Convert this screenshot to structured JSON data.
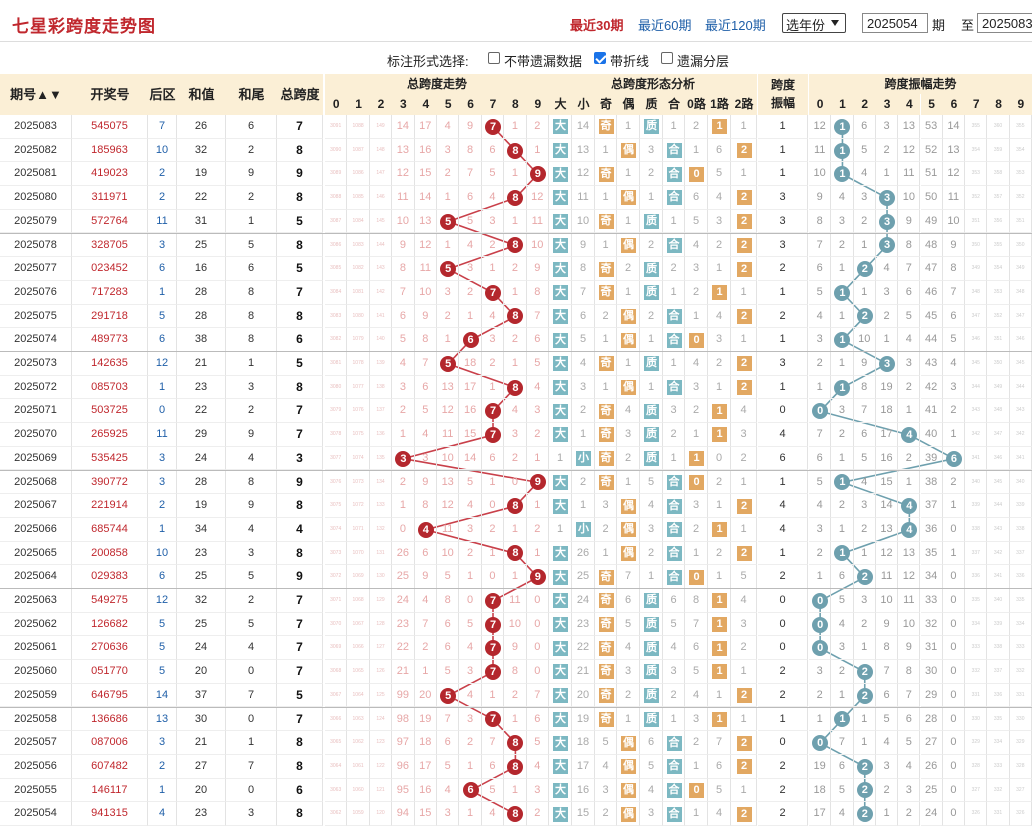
{
  "page": {
    "title": "七星彩跨度走势图"
  },
  "periods": {
    "items": [
      "最近30期",
      "最近60期",
      "最近120期"
    ],
    "selected": 0
  },
  "range": {
    "year_select": "选年份",
    "from": "2025054",
    "to": "2025083",
    "label_qi": "期",
    "label_zhi": "至"
  },
  "options": {
    "label": "标注形式选择:",
    "items": [
      {
        "label": "不带遗漏数据",
        "checked": false
      },
      {
        "label": "带折线",
        "checked": true
      },
      {
        "label": "遗漏分层",
        "checked": false
      }
    ]
  },
  "headers": {
    "period": "期号",
    "draw": "开奖号",
    "back": "后区",
    "sum": "和值",
    "tail": "和尾",
    "span": "总跨度",
    "trend": "总跨度走势",
    "shape": "总跨度形态分析",
    "amp": "跨度振幅",
    "amp_trend": "跨度振幅走势",
    "digits": [
      "0",
      "1",
      "2",
      "3",
      "4",
      "5",
      "6",
      "7",
      "8",
      "9"
    ],
    "shape_cols": [
      "大",
      "小",
      "奇",
      "偶",
      "质",
      "合",
      "0路",
      "1路",
      "2路"
    ]
  },
  "rows": [
    {
      "p": "2025083",
      "d": "545075",
      "b": 7,
      "s": 26,
      "t": 6,
      "k": 7,
      "m": [
        3091,
        1088,
        149,
        14,
        17,
        4,
        9,
        0,
        1,
        2
      ],
      "f": [
        "大",
        "14",
        "奇",
        "1",
        "质",
        "1",
        "2",
        "1",
        "1"
      ],
      "a": 1,
      "am": [
        12,
        0,
        6,
        3,
        13,
        53,
        14,
        355,
        360,
        355
      ]
    },
    {
      "p": "2025082",
      "d": "185963",
      "b": 10,
      "s": 32,
      "t": 2,
      "k": 8,
      "m": [
        3090,
        1087,
        148,
        13,
        16,
        3,
        8,
        6,
        0,
        1
      ],
      "f": [
        "大",
        "13",
        "1",
        "偶",
        "3",
        "合",
        "1",
        "6",
        "2"
      ],
      "a": 1,
      "am": [
        11,
        0,
        5,
        2,
        12,
        52,
        13,
        354,
        359,
        354
      ]
    },
    {
      "p": "2025081",
      "d": "419023",
      "b": 2,
      "s": 19,
      "t": 9,
      "k": 9,
      "m": [
        3089,
        1086,
        147,
        12,
        15,
        2,
        7,
        5,
        1,
        0
      ],
      "f": [
        "大",
        "12",
        "奇",
        "1",
        "2",
        "合",
        "0",
        "5",
        "1"
      ],
      "a": 1,
      "am": [
        10,
        0,
        4,
        1,
        11,
        51,
        12,
        353,
        358,
        353
      ]
    },
    {
      "p": "2025080",
      "d": "311971",
      "b": 2,
      "s": 22,
      "t": 2,
      "k": 8,
      "m": [
        3088,
        1085,
        146,
        11,
        14,
        1,
        6,
        4,
        0,
        12
      ],
      "f": [
        "大",
        "11",
        "1",
        "偶",
        "1",
        "合",
        "6",
        "4",
        "2"
      ],
      "a": 3,
      "am": [
        9,
        4,
        3,
        0,
        10,
        50,
        11,
        352,
        357,
        352
      ]
    },
    {
      "p": "2025079",
      "d": "572764",
      "b": 11,
      "s": 31,
      "t": 1,
      "k": 5,
      "m": [
        3087,
        1084,
        145,
        10,
        13,
        0,
        5,
        3,
        1,
        11
      ],
      "f": [
        "大",
        "10",
        "奇",
        "1",
        "质",
        "1",
        "5",
        "3",
        "2"
      ],
      "a": 3,
      "am": [
        8,
        3,
        2,
        0,
        9,
        49,
        10,
        351,
        356,
        351
      ]
    },
    {
      "p": "2025078",
      "d": "328705",
      "b": 3,
      "s": 25,
      "t": 5,
      "k": 8,
      "m": [
        3086,
        1083,
        144,
        9,
        12,
        1,
        4,
        2,
        0,
        10
      ],
      "f": [
        "大",
        "9",
        "1",
        "偶",
        "2",
        "合",
        "4",
        "2",
        "2"
      ],
      "a": 3,
      "am": [
        7,
        2,
        1,
        0,
        8,
        48,
        9,
        350,
        355,
        350
      ]
    },
    {
      "p": "2025077",
      "d": "023452",
      "b": 6,
      "s": 16,
      "t": 6,
      "k": 5,
      "m": [
        3085,
        1082,
        143,
        8,
        11,
        0,
        3,
        1,
        2,
        9
      ],
      "f": [
        "大",
        "8",
        "奇",
        "2",
        "质",
        "2",
        "3",
        "1",
        "2"
      ],
      "a": 2,
      "am": [
        6,
        1,
        0,
        4,
        7,
        47,
        8,
        349,
        354,
        349
      ]
    },
    {
      "p": "2025076",
      "d": "717283",
      "b": 1,
      "s": 28,
      "t": 8,
      "k": 7,
      "m": [
        3084,
        1081,
        142,
        7,
        10,
        3,
        2,
        0,
        1,
        8
      ],
      "f": [
        "大",
        "7",
        "奇",
        "1",
        "质",
        "1",
        "2",
        "1",
        "1"
      ],
      "a": 1,
      "am": [
        5,
        0,
        1,
        3,
        6,
        46,
        7,
        348,
        353,
        348
      ]
    },
    {
      "p": "2025075",
      "d": "291718",
      "b": 5,
      "s": 28,
      "t": 8,
      "k": 8,
      "m": [
        3083,
        1080,
        141,
        6,
        9,
        2,
        1,
        4,
        0,
        7
      ],
      "f": [
        "大",
        "6",
        "2",
        "偶",
        "2",
        "合",
        "1",
        "4",
        "2"
      ],
      "a": 2,
      "am": [
        4,
        1,
        0,
        2,
        5,
        45,
        6,
        347,
        352,
        347
      ]
    },
    {
      "p": "2025074",
      "d": "489773",
      "b": 6,
      "s": 38,
      "t": 8,
      "k": 6,
      "m": [
        3082,
        1079,
        140,
        5,
        8,
        1,
        0,
        3,
        2,
        6
      ],
      "f": [
        "大",
        "5",
        "1",
        "偶",
        "1",
        "合",
        "0",
        "3",
        "1"
      ],
      "a": 1,
      "am": [
        3,
        0,
        10,
        1,
        4,
        44,
        5,
        346,
        351,
        346
      ]
    },
    {
      "p": "2025073",
      "d": "142635",
      "b": 12,
      "s": 21,
      "t": 1,
      "k": 5,
      "m": [
        3081,
        1078,
        139,
        4,
        7,
        0,
        18,
        2,
        1,
        5
      ],
      "f": [
        "大",
        "4",
        "奇",
        "1",
        "质",
        "1",
        "4",
        "2",
        "2"
      ],
      "a": 3,
      "am": [
        2,
        1,
        9,
        0,
        3,
        43,
        4,
        345,
        350,
        345
      ]
    },
    {
      "p": "2025072",
      "d": "085703",
      "b": 1,
      "s": 23,
      "t": 3,
      "k": 8,
      "m": [
        3080,
        1077,
        138,
        3,
        6,
        13,
        17,
        1,
        0,
        4
      ],
      "f": [
        "大",
        "3",
        "1",
        "偶",
        "1",
        "合",
        "3",
        "1",
        "2"
      ],
      "a": 1,
      "am": [
        1,
        0,
        8,
        19,
        2,
        42,
        3,
        344,
        349,
        344
      ]
    },
    {
      "p": "2025071",
      "d": "503725",
      "b": 0,
      "s": 22,
      "t": 2,
      "k": 7,
      "m": [
        3079,
        1076,
        137,
        2,
        5,
        12,
        16,
        0,
        4,
        3
      ],
      "f": [
        "大",
        "2",
        "奇",
        "4",
        "质",
        "3",
        "2",
        "1",
        "4"
      ],
      "a": 0,
      "am": [
        0,
        3,
        7,
        18,
        1,
        41,
        2,
        343,
        348,
        343
      ]
    },
    {
      "p": "2025070",
      "d": "265925",
      "b": 11,
      "s": 29,
      "t": 9,
      "k": 7,
      "m": [
        3078,
        1075,
        136,
        1,
        4,
        11,
        15,
        0,
        3,
        2
      ],
      "f": [
        "大",
        "1",
        "奇",
        "3",
        "质",
        "2",
        "1",
        "1",
        "3"
      ],
      "a": 4,
      "am": [
        7,
        2,
        6,
        17,
        0,
        40,
        1,
        342,
        347,
        342
      ]
    },
    {
      "p": "2025069",
      "d": "535425",
      "b": 3,
      "s": 24,
      "t": 4,
      "k": 3,
      "m": [
        3077,
        1074,
        135,
        0,
        3,
        10,
        14,
        6,
        2,
        1
      ],
      "f": [
        "1",
        "小",
        "奇",
        "2",
        "质",
        "1",
        "1",
        "0",
        "2"
      ],
      "a": 6,
      "am": [
        6,
        1,
        5,
        16,
        2,
        39,
        0,
        341,
        346,
        341
      ]
    },
    {
      "p": "2025068",
      "d": "390772",
      "b": 3,
      "s": 28,
      "t": 8,
      "k": 9,
      "m": [
        3076,
        1073,
        134,
        2,
        9,
        13,
        5,
        1,
        0,
        0
      ],
      "f": [
        "大",
        "2",
        "奇",
        "1",
        "5",
        "合",
        "0",
        "2",
        "1"
      ],
      "a": 1,
      "am": [
        5,
        0,
        4,
        15,
        1,
        38,
        2,
        340,
        345,
        340
      ]
    },
    {
      "p": "2025067",
      "d": "221914",
      "b": 2,
      "s": 19,
      "t": 9,
      "k": 8,
      "m": [
        3075,
        1072,
        133,
        1,
        8,
        12,
        4,
        0,
        0,
        1
      ],
      "f": [
        "大",
        "1",
        "3",
        "偶",
        "4",
        "合",
        "3",
        "1",
        "2"
      ],
      "a": 4,
      "am": [
        4,
        2,
        3,
        14,
        0,
        37,
        1,
        339,
        344,
        339
      ]
    },
    {
      "p": "2025066",
      "d": "685744",
      "b": 1,
      "s": 34,
      "t": 4,
      "k": 4,
      "m": [
        3074,
        1071,
        132,
        0,
        0,
        11,
        3,
        2,
        1,
        2
      ],
      "f": [
        "1",
        "小",
        "2",
        "偶",
        "3",
        "合",
        "2",
        "1",
        "1"
      ],
      "a": 4,
      "am": [
        3,
        1,
        2,
        13,
        0,
        36,
        0,
        338,
        343,
        338
      ]
    },
    {
      "p": "2025065",
      "d": "200858",
      "b": 10,
      "s": 23,
      "t": 3,
      "k": 8,
      "m": [
        3073,
        1070,
        131,
        26,
        6,
        10,
        2,
        1,
        0,
        1
      ],
      "f": [
        "大",
        "26",
        "1",
        "偶",
        "2",
        "合",
        "1",
        "2",
        "2"
      ],
      "a": 1,
      "am": [
        2,
        0,
        1,
        12,
        13,
        35,
        1,
        337,
        342,
        337
      ]
    },
    {
      "p": "2025064",
      "d": "029383",
      "b": 6,
      "s": 25,
      "t": 5,
      "k": 9,
      "m": [
        3072,
        1069,
        130,
        25,
        9,
        5,
        1,
        0,
        1,
        0
      ],
      "f": [
        "大",
        "25",
        "奇",
        "7",
        "1",
        "合",
        "0",
        "1",
        "5"
      ],
      "a": 2,
      "am": [
        1,
        6,
        0,
        11,
        12,
        34,
        0,
        336,
        341,
        336
      ]
    },
    {
      "p": "2025063",
      "d": "549275",
      "b": 12,
      "s": 32,
      "t": 2,
      "k": 7,
      "m": [
        3071,
        1068,
        129,
        24,
        4,
        8,
        0,
        6,
        11,
        0
      ],
      "f": [
        "大",
        "24",
        "奇",
        "6",
        "质",
        "6",
        "8",
        "1",
        "4"
      ],
      "a": 0,
      "am": [
        0,
        5,
        3,
        10,
        11,
        33,
        0,
        335,
        340,
        335
      ]
    },
    {
      "p": "2025062",
      "d": "126682",
      "b": 5,
      "s": 25,
      "t": 5,
      "k": 7,
      "m": [
        3070,
        1067,
        128,
        23,
        7,
        6,
        5,
        0,
        10,
        0
      ],
      "f": [
        "大",
        "23",
        "奇",
        "5",
        "质",
        "5",
        "7",
        "1",
        "3"
      ],
      "a": 0,
      "am": [
        0,
        4,
        2,
        9,
        10,
        32,
        0,
        334,
        339,
        334
      ]
    },
    {
      "p": "2025061",
      "d": "270636",
      "b": 5,
      "s": 24,
      "t": 4,
      "k": 7,
      "m": [
        3069,
        1066,
        127,
        22,
        2,
        6,
        4,
        0,
        9,
        0
      ],
      "f": [
        "大",
        "22",
        "奇",
        "4",
        "质",
        "4",
        "6",
        "1",
        "2"
      ],
      "a": 0,
      "am": [
        0,
        3,
        1,
        8,
        9,
        31,
        0,
        333,
        338,
        333
      ]
    },
    {
      "p": "2025060",
      "d": "051770",
      "b": 5,
      "s": 20,
      "t": 0,
      "k": 7,
      "m": [
        3068,
        1065,
        126,
        21,
        1,
        5,
        3,
        0,
        8,
        0
      ],
      "f": [
        "大",
        "21",
        "奇",
        "3",
        "质",
        "3",
        "5",
        "1",
        "1"
      ],
      "a": 2,
      "am": [
        3,
        2,
        0,
        7,
        8,
        30,
        0,
        332,
        337,
        332
      ]
    },
    {
      "p": "2025059",
      "d": "646795",
      "b": 14,
      "s": 37,
      "t": 7,
      "k": 5,
      "m": [
        3067,
        1064,
        125,
        99,
        20,
        0,
        4,
        1,
        2,
        7
      ],
      "f": [
        "大",
        "20",
        "奇",
        "2",
        "质",
        "2",
        "4",
        "1",
        "2"
      ],
      "a": 2,
      "am": [
        2,
        1,
        0,
        6,
        7,
        29,
        0,
        331,
        336,
        331
      ]
    },
    {
      "p": "2025058",
      "d": "136686",
      "b": 13,
      "s": 30,
      "t": 0,
      "k": 7,
      "m": [
        3066,
        1063,
        124,
        98,
        19,
        7,
        3,
        0,
        1,
        6
      ],
      "f": [
        "大",
        "19",
        "奇",
        "1",
        "质",
        "1",
        "3",
        "1",
        "1"
      ],
      "a": 1,
      "am": [
        1,
        0,
        1,
        5,
        6,
        28,
        0,
        330,
        335,
        330
      ]
    },
    {
      "p": "2025057",
      "d": "087006",
      "b": 3,
      "s": 21,
      "t": 1,
      "k": 8,
      "m": [
        3065,
        1062,
        123,
        97,
        18,
        6,
        2,
        7,
        0,
        5
      ],
      "f": [
        "大",
        "18",
        "5",
        "偶",
        "6",
        "合",
        "2",
        "7",
        "2"
      ],
      "a": 0,
      "am": [
        0,
        7,
        1,
        4,
        5,
        27,
        0,
        329,
        334,
        329
      ]
    },
    {
      "p": "2025056",
      "d": "607482",
      "b": 2,
      "s": 27,
      "t": 7,
      "k": 8,
      "m": [
        3064,
        1061,
        122,
        96,
        17,
        5,
        1,
        6,
        0,
        4
      ],
      "f": [
        "大",
        "17",
        "4",
        "偶",
        "5",
        "合",
        "1",
        "6",
        "2"
      ],
      "a": 2,
      "am": [
        19,
        6,
        0,
        3,
        4,
        26,
        0,
        328,
        333,
        328
      ]
    },
    {
      "p": "2025055",
      "d": "146117",
      "b": 1,
      "s": 20,
      "t": 0,
      "k": 6,
      "m": [
        3063,
        1060,
        121,
        95,
        16,
        4,
        0,
        5,
        1,
        3
      ],
      "f": [
        "大",
        "16",
        "3",
        "偶",
        "4",
        "合",
        "0",
        "5",
        "1"
      ],
      "a": 2,
      "am": [
        18,
        5,
        0,
        2,
        3,
        25,
        0,
        327,
        332,
        327
      ]
    },
    {
      "p": "2025054",
      "d": "941315",
      "b": 4,
      "s": 23,
      "t": 3,
      "k": 8,
      "m": [
        3062,
        1059,
        120,
        94,
        15,
        3,
        1,
        4,
        0,
        2
      ],
      "f": [
        "大",
        "15",
        "2",
        "偶",
        "3",
        "合",
        "1",
        "4",
        "2"
      ],
      "a": 2,
      "am": [
        17,
        4,
        0,
        1,
        2,
        24,
        0,
        326,
        331,
        326
      ]
    }
  ]
}
